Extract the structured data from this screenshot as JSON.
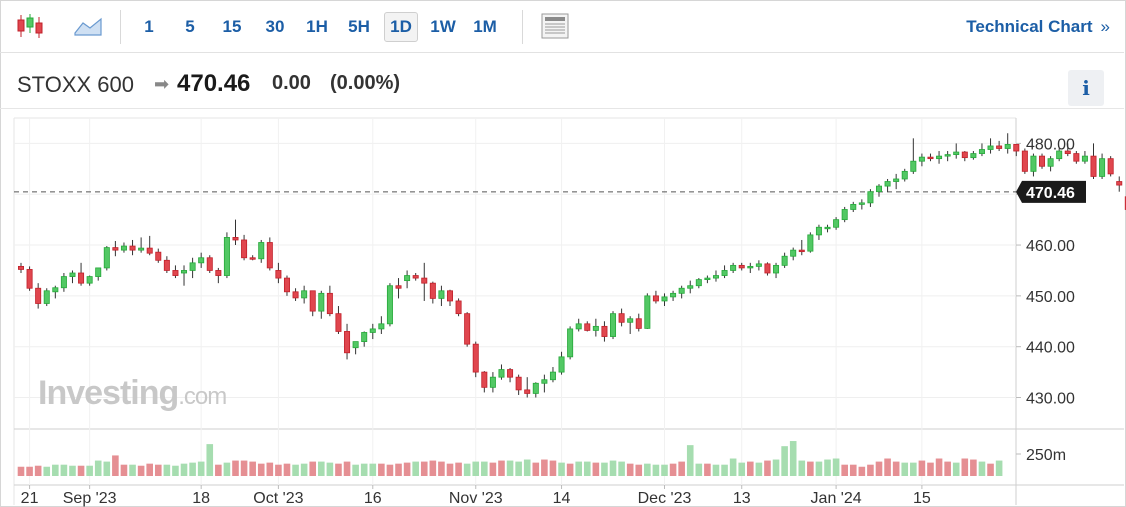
{
  "toolbar": {
    "chart_type_icons": [
      "candlestick-icon",
      "area-chart-icon"
    ],
    "timeframes": [
      "1",
      "5",
      "15",
      "30",
      "1H",
      "5H",
      "1D",
      "1W",
      "1M"
    ],
    "active_timeframe": "1D",
    "layout_icon": "panel-layout-icon",
    "technical_chart_label": "Technical Chart",
    "technical_chart_chevron": "»"
  },
  "quote": {
    "symbol": "STOXX 600",
    "direction_icon": "right-arrow-icon",
    "last": "470.46",
    "change": "0.00",
    "change_pct": "(0.00%)",
    "info_label": "i"
  },
  "watermark": {
    "brand": "Investing",
    "suffix": ".com"
  },
  "colors": {
    "up": "#26a83a",
    "up_fill": "#52c864",
    "down": "#c0202a",
    "down_fill": "#e0464e",
    "vol_up": "#a6ddb0",
    "vol_down": "#e58f93",
    "link": "#1c5ea6"
  },
  "chart_data": {
    "type": "candlestick",
    "ylim": [
      424,
      485
    ],
    "yticks": [
      480,
      470,
      460,
      450,
      440,
      430
    ],
    "ytick_labels": [
      "480.00",
      "470.00",
      "460.00",
      "450.00",
      "440.00",
      "430.00"
    ],
    "current_price": 470.46,
    "current_price_label": "470.46",
    "volume_label": "250m",
    "x_labels": [
      {
        "label": "21",
        "index": 1
      },
      {
        "label": "Sep '23",
        "index": 8
      },
      {
        "label": "18",
        "index": 21
      },
      {
        "label": "Oct '23",
        "index": 30
      },
      {
        "label": "16",
        "index": 41
      },
      {
        "label": "Nov '23",
        "index": 53
      },
      {
        "label": "14",
        "index": 63
      },
      {
        "label": "Dec '23",
        "index": 75
      },
      {
        "label": "13",
        "index": 84
      },
      {
        "label": "Jan '24",
        "index": 95
      },
      {
        "label": "15",
        "index": 105
      }
    ],
    "candles": [
      [
        455.8,
        456.5,
        454.5,
        455.2
      ],
      [
        455.2,
        455.8,
        451.0,
        451.5
      ],
      [
        451.5,
        452.5,
        447.5,
        448.5
      ],
      [
        448.5,
        451.5,
        448.0,
        451.0
      ],
      [
        450.8,
        452.0,
        449.5,
        451.6
      ],
      [
        451.6,
        454.5,
        450.8,
        453.8
      ],
      [
        453.8,
        455.0,
        452.5,
        454.5
      ],
      [
        454.5,
        456.5,
        452.0,
        452.5
      ],
      [
        452.5,
        454.0,
        452.0,
        453.8
      ],
      [
        453.8,
        455.5,
        453.0,
        455.5
      ],
      [
        455.5,
        459.8,
        455.0,
        459.5
      ],
      [
        459.5,
        460.8,
        457.8,
        459.0
      ],
      [
        459.0,
        460.5,
        458.5,
        459.8
      ],
      [
        459.8,
        461.0,
        458.0,
        459.0
      ],
      [
        459.0,
        461.5,
        458.5,
        459.4
      ],
      [
        459.4,
        461.8,
        458.0,
        458.4
      ],
      [
        458.6,
        459.3,
        456.5,
        457.0
      ],
      [
        457.0,
        457.8,
        454.5,
        455.0
      ],
      [
        455.0,
        456.0,
        453.5,
        454.0
      ],
      [
        454.5,
        456.0,
        452.0,
        455.0
      ],
      [
        455.0,
        457.5,
        453.5,
        456.5
      ],
      [
        456.5,
        458.5,
        455.5,
        457.5
      ],
      [
        457.5,
        458.0,
        454.5,
        455.0
      ],
      [
        455.0,
        455.5,
        452.5,
        454.0
      ],
      [
        454.0,
        462.5,
        453.5,
        461.5
      ],
      [
        461.5,
        465.0,
        460.0,
        461.0
      ],
      [
        461.0,
        462.0,
        457.0,
        457.5
      ],
      [
        457.5,
        458.0,
        457.0,
        457.3
      ],
      [
        457.3,
        461.0,
        456.5,
        460.5
      ],
      [
        460.5,
        461.5,
        455.0,
        455.5
      ],
      [
        455.0,
        456.5,
        452.5,
        453.5
      ],
      [
        453.5,
        454.0,
        450.0,
        450.8
      ],
      [
        450.8,
        451.5,
        449.0,
        449.6
      ],
      [
        449.6,
        452.0,
        448.5,
        451.0
      ],
      [
        451.0,
        451.0,
        446.0,
        447.0
      ],
      [
        447.0,
        451.0,
        445.5,
        450.5
      ],
      [
        450.5,
        452.0,
        446.0,
        446.5
      ],
      [
        446.5,
        448.0,
        442.5,
        443.0
      ],
      [
        443.0,
        444.5,
        437.5,
        438.8
      ],
      [
        439.8,
        441.0,
        438.5,
        441.0
      ],
      [
        441.0,
        443.0,
        440.0,
        442.8
      ],
      [
        442.8,
        444.5,
        441.5,
        443.5
      ],
      [
        443.5,
        446.0,
        442.5,
        444.5
      ],
      [
        444.5,
        452.5,
        444.0,
        452.0
      ],
      [
        452.0,
        453.5,
        449.5,
        451.5
      ],
      [
        453.0,
        455.0,
        451.5,
        454.0
      ],
      [
        454.0,
        454.5,
        453.0,
        453.5
      ],
      [
        453.5,
        456.5,
        449.0,
        452.5
      ],
      [
        452.5,
        452.8,
        448.5,
        449.5
      ],
      [
        449.5,
        452.0,
        448.0,
        451.0
      ],
      [
        451.0,
        451.2,
        448.0,
        449.0
      ],
      [
        449.0,
        449.5,
        446.0,
        446.5
      ],
      [
        446.5,
        446.8,
        440.0,
        440.5
      ],
      [
        440.5,
        441.0,
        434.0,
        435.0
      ],
      [
        435.0,
        435.2,
        431.0,
        432.0
      ],
      [
        432.0,
        435.0,
        431.0,
        434.0
      ],
      [
        434.0,
        436.5,
        433.5,
        435.5
      ],
      [
        435.5,
        435.8,
        433.0,
        434.0
      ],
      [
        434.0,
        434.5,
        430.5,
        431.5
      ],
      [
        431.5,
        434.0,
        430.0,
        430.8
      ],
      [
        430.8,
        433.0,
        430.0,
        432.8
      ],
      [
        432.8,
        434.5,
        431.0,
        433.5
      ],
      [
        433.5,
        436.0,
        433.0,
        435.0
      ],
      [
        435.0,
        439.0,
        434.5,
        438.0
      ],
      [
        438.0,
        444.0,
        437.5,
        443.5
      ],
      [
        443.5,
        445.5,
        443.0,
        444.5
      ],
      [
        444.5,
        445.0,
        443.0,
        443.2
      ],
      [
        443.2,
        445.5,
        442.0,
        444.0
      ],
      [
        444.0,
        445.0,
        441.0,
        442.0
      ],
      [
        442.0,
        447.0,
        441.5,
        446.5
      ],
      [
        446.5,
        447.5,
        444.0,
        444.8
      ],
      [
        444.8,
        446.0,
        442.5,
        445.5
      ],
      [
        445.5,
        446.5,
        443.0,
        443.6
      ],
      [
        443.6,
        450.5,
        443.5,
        450.0
      ],
      [
        450.0,
        451.0,
        448.5,
        449.0
      ],
      [
        449.0,
        450.5,
        448.0,
        449.8
      ],
      [
        449.8,
        451.0,
        449.0,
        450.5
      ],
      [
        450.5,
        452.0,
        449.5,
        451.5
      ],
      [
        451.5,
        453.0,
        450.5,
        452.0
      ],
      [
        452.0,
        453.5,
        451.5,
        453.2
      ],
      [
        453.2,
        454.0,
        452.5,
        453.5
      ],
      [
        453.5,
        455.0,
        452.8,
        454.0
      ],
      [
        454.0,
        456.0,
        453.5,
        455.0
      ],
      [
        455.0,
        456.5,
        454.5,
        456.0
      ],
      [
        456.0,
        456.5,
        455.0,
        455.5
      ],
      [
        455.5,
        456.5,
        454.5,
        455.8
      ],
      [
        455.8,
        457.0,
        455.0,
        456.3
      ],
      [
        456.3,
        456.6,
        454.0,
        454.5
      ],
      [
        454.5,
        456.5,
        453.5,
        456.0
      ],
      [
        456.0,
        458.5,
        455.5,
        457.8
      ],
      [
        457.8,
        459.5,
        457.0,
        459.0
      ],
      [
        459.0,
        461.0,
        458.0,
        458.8
      ],
      [
        458.8,
        462.5,
        458.5,
        462.0
      ],
      [
        462.0,
        464.0,
        461.0,
        463.5
      ],
      [
        463.5,
        464.0,
        462.5,
        463.5
      ],
      [
        463.5,
        465.5,
        463.0,
        465.0
      ],
      [
        465.0,
        467.5,
        464.5,
        467.0
      ]
    ],
    "extra_candles": [
      [
        467.0,
        468.5,
        466.5,
        468.0
      ],
      [
        468.0,
        469.0,
        467.0,
        468.3
      ],
      [
        468.3,
        471.0,
        467.5,
        470.5
      ],
      [
        470.5,
        472.0,
        469.5,
        471.6
      ],
      [
        471.6,
        473.0,
        470.5,
        472.5
      ],
      [
        472.5,
        474.0,
        471.0,
        473.0
      ],
      [
        473.0,
        475.0,
        472.5,
        474.5
      ],
      [
        474.5,
        481.0,
        474.0,
        476.5
      ],
      [
        476.5,
        478.0,
        475.5,
        477.3
      ],
      [
        477.3,
        478.0,
        476.5,
        477.0
      ],
      [
        477.0,
        478.5,
        476.0,
        477.5
      ],
      [
        477.5,
        478.5,
        476.5,
        477.8
      ],
      [
        477.8,
        480.0,
        477.0,
        478.3
      ],
      [
        478.3,
        478.5,
        476.5,
        477.2
      ],
      [
        477.2,
        478.5,
        476.8,
        478.0
      ],
      [
        478.0,
        480.0,
        477.5,
        478.8
      ],
      [
        478.8,
        481.0,
        478.0,
        479.5
      ],
      [
        479.5,
        480.5,
        478.5,
        479.0
      ],
      [
        479.0,
        482.0,
        478.0,
        479.8
      ],
      [
        479.8,
        479.5,
        477.5,
        478.5
      ],
      [
        478.5,
        479.0,
        474.0,
        474.5
      ],
      [
        474.5,
        478.0,
        473.5,
        477.5
      ],
      [
        477.5,
        478.0,
        475.0,
        475.5
      ],
      [
        475.5,
        477.5,
        474.5,
        477.0
      ],
      [
        477.0,
        479.0,
        476.5,
        478.5
      ],
      [
        478.5,
        480.0,
        477.5,
        478.0
      ],
      [
        478.0,
        478.5,
        476.0,
        476.5
      ],
      [
        476.5,
        478.5,
        476.0,
        477.5
      ],
      [
        477.5,
        480.0,
        473.0,
        473.5
      ],
      [
        473.5,
        478.0,
        473.0,
        477.0
      ],
      [
        477.0,
        477.5,
        473.5,
        474.0
      ],
      [
        472.5,
        473.5,
        470.5,
        471.8
      ],
      [
        469.5,
        470.0,
        464.5,
        467.0
      ],
      [
        468.5,
        471.0,
        467.5,
        470.46
      ]
    ],
    "volume": [
      [
        0.45,
        0
      ],
      [
        0.45,
        0
      ],
      [
        0.5,
        0
      ],
      [
        0.45,
        1
      ],
      [
        0.55,
        1
      ],
      [
        0.55,
        1
      ],
      [
        0.5,
        1
      ],
      [
        0.5,
        0
      ],
      [
        0.5,
        1
      ],
      [
        0.75,
        1
      ],
      [
        0.7,
        1
      ],
      [
        1.0,
        0
      ],
      [
        0.55,
        0
      ],
      [
        0.55,
        1
      ],
      [
        0.5,
        0
      ],
      [
        0.6,
        0
      ],
      [
        0.55,
        0
      ],
      [
        0.55,
        1
      ],
      [
        0.5,
        1
      ],
      [
        0.6,
        1
      ],
      [
        0.65,
        1
      ],
      [
        0.7,
        1
      ],
      [
        1.55,
        1
      ],
      [
        0.55,
        0
      ],
      [
        0.65,
        1
      ],
      [
        0.75,
        0
      ],
      [
        0.75,
        0
      ],
      [
        0.7,
        0
      ],
      [
        0.6,
        0
      ],
      [
        0.65,
        0
      ],
      [
        0.55,
        0
      ],
      [
        0.6,
        0
      ],
      [
        0.55,
        1
      ],
      [
        0.6,
        1
      ],
      [
        0.7,
        0
      ],
      [
        0.7,
        1
      ],
      [
        0.65,
        1
      ],
      [
        0.6,
        0
      ],
      [
        0.7,
        0
      ],
      [
        0.55,
        1
      ],
      [
        0.6,
        1
      ],
      [
        0.6,
        1
      ],
      [
        0.6,
        0
      ],
      [
        0.55,
        0
      ],
      [
        0.6,
        0
      ],
      [
        0.65,
        0
      ],
      [
        0.7,
        1
      ],
      [
        0.7,
        0
      ],
      [
        0.75,
        0
      ],
      [
        0.7,
        0
      ],
      [
        0.6,
        0
      ],
      [
        0.65,
        0
      ],
      [
        0.6,
        1
      ],
      [
        0.7,
        1
      ],
      [
        0.7,
        1
      ],
      [
        0.65,
        0
      ],
      [
        0.75,
        0
      ],
      [
        0.75,
        1
      ],
      [
        0.7,
        1
      ],
      [
        0.8,
        1
      ],
      [
        0.65,
        0
      ],
      [
        0.8,
        0
      ],
      [
        0.75,
        0
      ],
      [
        0.65,
        1
      ],
      [
        0.6,
        0
      ],
      [
        0.7,
        1
      ],
      [
        0.7,
        1
      ],
      [
        0.65,
        0
      ],
      [
        0.65,
        1
      ],
      [
        0.75,
        1
      ],
      [
        0.7,
        1
      ],
      [
        0.6,
        0
      ],
      [
        0.55,
        0
      ],
      [
        0.6,
        1
      ],
      [
        0.55,
        1
      ],
      [
        0.55,
        1
      ],
      [
        0.6,
        0
      ],
      [
        0.7,
        0
      ],
      [
        1.5,
        1
      ],
      [
        0.6,
        1
      ],
      [
        0.6,
        0
      ],
      [
        0.55,
        1
      ],
      [
        0.55,
        1
      ],
      [
        0.85,
        1
      ],
      [
        0.65,
        1
      ],
      [
        0.7,
        0
      ],
      [
        0.65,
        1
      ],
      [
        0.75,
        0
      ],
      [
        0.8,
        1
      ],
      [
        1.45,
        1
      ],
      [
        1.7,
        1
      ],
      [
        0.75,
        1
      ],
      [
        0.7,
        0
      ],
      [
        0.7,
        1
      ],
      [
        0.8,
        1
      ],
      [
        0.85,
        1
      ],
      [
        0.55,
        0
      ],
      [
        0.55,
        0
      ],
      [
        0.45,
        0
      ],
      [
        0.55,
        0
      ],
      [
        0.7,
        0
      ],
      [
        0.85,
        0
      ],
      [
        0.7,
        0
      ],
      [
        0.65,
        1
      ],
      [
        0.65,
        1
      ],
      [
        0.75,
        0
      ],
      [
        0.65,
        0
      ],
      [
        0.85,
        0
      ],
      [
        0.7,
        0
      ],
      [
        0.65,
        1
      ],
      [
        0.85,
        0
      ],
      [
        0.8,
        0
      ],
      [
        0.7,
        1
      ],
      [
        0.6,
        0
      ],
      [
        0.75,
        1
      ]
    ]
  }
}
